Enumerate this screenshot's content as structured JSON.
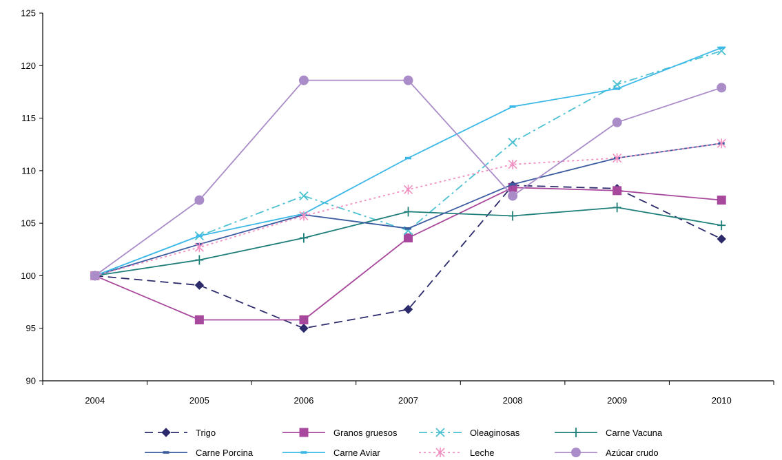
{
  "chart_data": {
    "type": "line",
    "title": "",
    "xlabel": "",
    "ylabel": "",
    "categories": [
      "2004",
      "2005",
      "2006",
      "2007",
      "2008",
      "2009",
      "2010"
    ],
    "ylim": [
      90,
      125
    ],
    "yticks": [
      90,
      95,
      100,
      105,
      110,
      115,
      120,
      125
    ],
    "grid": false,
    "legend_position": "bottom",
    "series": [
      {
        "name": "Trigo",
        "color": "#2B2A6B",
        "dash": "dashed",
        "marker": "diamond",
        "values": [
          100,
          99.1,
          95.0,
          96.8,
          108.6,
          108.3,
          103.5
        ]
      },
      {
        "name": "Granos gruesos",
        "color": "#A8489C",
        "dash": "solid",
        "marker": "square",
        "values": [
          100,
          95.8,
          95.8,
          103.6,
          108.4,
          108.1,
          107.2
        ]
      },
      {
        "name": "Oleaginosas",
        "color": "#4BC1D2",
        "dash": "dashdot",
        "marker": "x",
        "values": [
          100,
          103.8,
          107.6,
          104.3,
          112.7,
          118.2,
          121.4
        ]
      },
      {
        "name": "Carne Vacuna",
        "color": "#1F7F7A",
        "dash": "solid",
        "marker": "plus",
        "values": [
          100,
          101.5,
          103.6,
          106.1,
          105.7,
          106.5,
          104.8
        ]
      },
      {
        "name": "Carne Porcina",
        "color": "#3A5BA0",
        "dash": "solid",
        "marker": "dash",
        "values": [
          100,
          103.0,
          105.8,
          104.5,
          108.7,
          111.2,
          112.6
        ]
      },
      {
        "name": "Carne Aviar",
        "color": "#3BB8E8",
        "dash": "solid",
        "marker": "dash",
        "values": [
          100,
          103.8,
          105.9,
          111.2,
          116.1,
          117.8,
          121.7
        ]
      },
      {
        "name": "Leche",
        "color": "#F08FC0",
        "dash": "dotted",
        "marker": "asterisk",
        "values": [
          100,
          102.7,
          105.7,
          108.2,
          110.6,
          111.2,
          112.6
        ]
      },
      {
        "name": "Azúcar crudo",
        "color": "#A98CC8",
        "dash": "solid",
        "marker": "circle",
        "values": [
          100,
          107.2,
          118.6,
          118.6,
          107.6,
          114.6,
          117.9
        ]
      }
    ]
  }
}
